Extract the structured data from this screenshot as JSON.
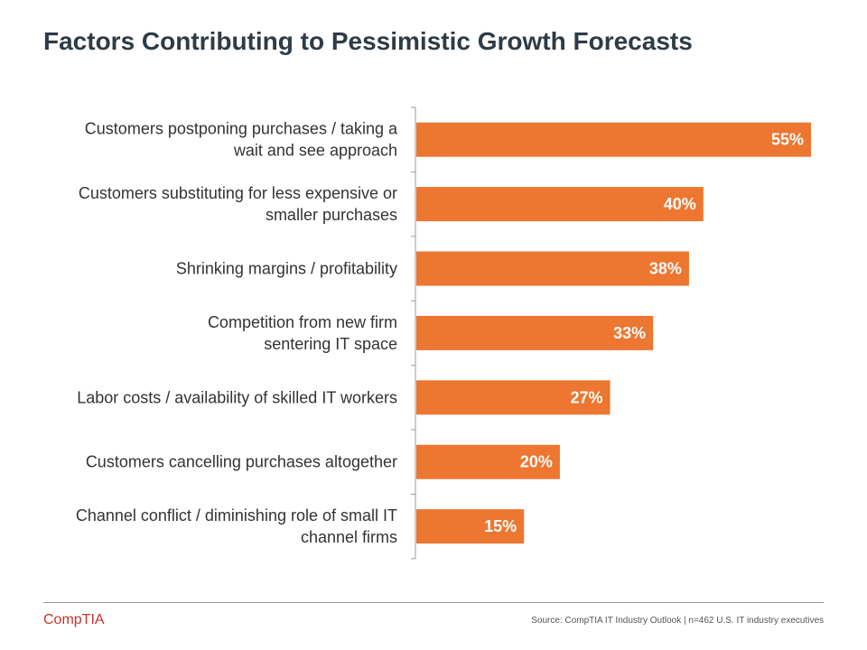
{
  "page": {
    "title": "Factors Contributing to Pessimistic Growth Forecasts",
    "source": "Source: CompTIA IT Industry Outlook | n=462 U.S. IT industry executives",
    "logo_text": "CompTIA"
  },
  "colors": {
    "bar": "#ed7630",
    "axis": "#999999",
    "logo": "#c8312b"
  },
  "chart_data": {
    "type": "bar",
    "orientation": "horizontal",
    "title": "Factors Contributing to Pessimistic Growth Forecasts",
    "categories": [
      [
        "Customers postponing purchases / taking a",
        "wait and see approach"
      ],
      [
        "Customers substituting for less expensive or",
        "smaller purchases"
      ],
      [
        "Shrinking margins / profitability"
      ],
      [
        "Competition from new firm",
        "sentering IT space"
      ],
      [
        "Labor costs / availability of skilled IT workers"
      ],
      [
        "Customers cancelling purchases altogether"
      ],
      [
        "Channel conflict / diminishing role of small IT",
        "channel firms"
      ]
    ],
    "values": [
      55,
      40,
      38,
      33,
      27,
      20,
      15
    ],
    "value_labels": [
      "55%",
      "40%",
      "38%",
      "33%",
      "27%",
      "20%",
      "15%"
    ],
    "xlim": [
      0,
      56
    ],
    "xlabel": "",
    "ylabel": "",
    "grid": false,
    "legend": "none"
  }
}
